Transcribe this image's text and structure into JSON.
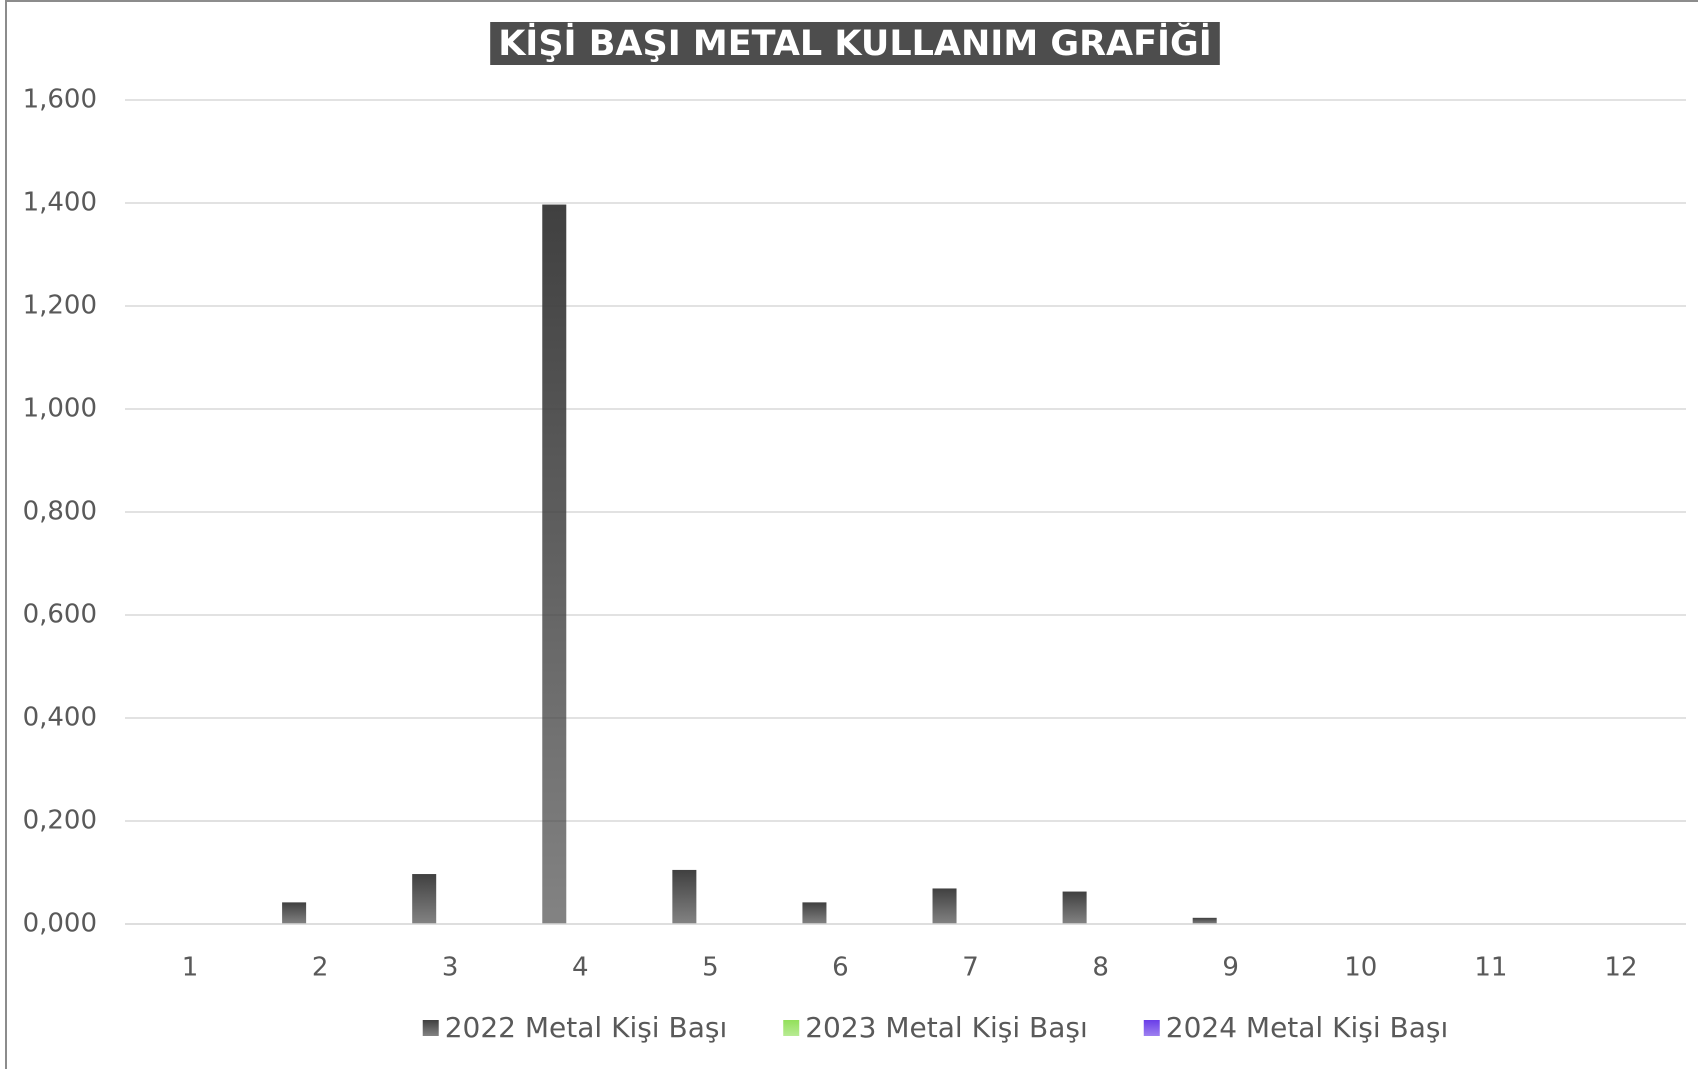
{
  "chart_data": {
    "type": "bar",
    "title": "KİŞİ BAŞI METAL KULLANIM GRAFİĞİ",
    "categories": [
      "1",
      "2",
      "3",
      "4",
      "5",
      "6",
      "7",
      "8",
      "9",
      "10",
      "11",
      "12"
    ],
    "series": [
      {
        "name": "2022 Metal Kişi Başı",
        "color": "#404040",
        "values": [
          null,
          0.042,
          0.097,
          1.397,
          0.105,
          0.042,
          0.069,
          0.063,
          0.012,
          null,
          null,
          null
        ]
      },
      {
        "name": "2023 Metal Kişi Başı",
        "color": "#92e05a",
        "values": [
          null,
          null,
          null,
          null,
          null,
          null,
          null,
          null,
          null,
          null,
          null,
          null
        ]
      },
      {
        "name": "2024 Metal Kişi Başı",
        "color": "#6a3de8",
        "values": [
          null,
          null,
          null,
          null,
          null,
          null,
          null,
          null,
          null,
          null,
          null,
          null
        ]
      }
    ],
    "ylim": [
      0,
      1.6
    ],
    "yticks": [
      {
        "value": 0,
        "label": "0,000"
      },
      {
        "value": 0.2,
        "label": "0,200"
      },
      {
        "value": 0.4,
        "label": "0,400"
      },
      {
        "value": 0.6,
        "label": "0,600"
      },
      {
        "value": 0.8,
        "label": "0,800"
      },
      {
        "value": 1.0,
        "label": "1,000"
      },
      {
        "value": 1.2,
        "label": "1,200"
      },
      {
        "value": 1.4,
        "label": "1,400"
      },
      {
        "value": 1.6,
        "label": "1,600"
      }
    ],
    "grid": true,
    "legend": "bottom"
  }
}
